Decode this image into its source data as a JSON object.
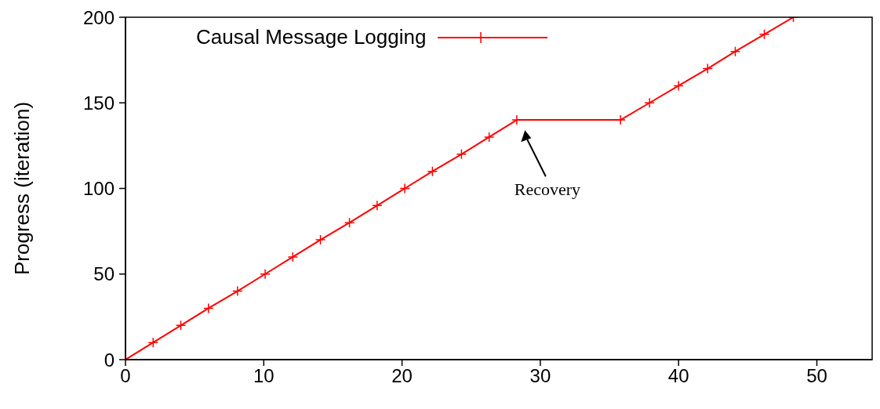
{
  "chart_data": {
    "type": "line",
    "ylabel": "Progress (iteration)",
    "xlim": [
      0,
      54
    ],
    "ylim": [
      0,
      200
    ],
    "xticks": [
      0,
      10,
      20,
      30,
      40,
      50
    ],
    "yticks": [
      0,
      50,
      100,
      150,
      200
    ],
    "grid": false,
    "legend": "top left",
    "marker": "cross",
    "line_style": "solid",
    "series": [
      {
        "name": "Causal Message Logging",
        "color": "#ff0000",
        "x": [
          0,
          2,
          4,
          6,
          8.1,
          10.1,
          12.1,
          14.1,
          16.2,
          18.2,
          20.2,
          22.2,
          24.3,
          26.3,
          28.3,
          35.8,
          37.9,
          40,
          42.1,
          44.1,
          46.2,
          48.3
        ],
        "values": [
          0,
          10,
          20,
          30,
          40,
          50,
          60,
          70,
          80,
          90,
          100,
          110,
          120,
          130,
          140,
          140,
          150,
          160,
          170,
          180,
          190,
          200
        ]
      }
    ],
    "annotations": [
      "Recovery"
    ]
  }
}
